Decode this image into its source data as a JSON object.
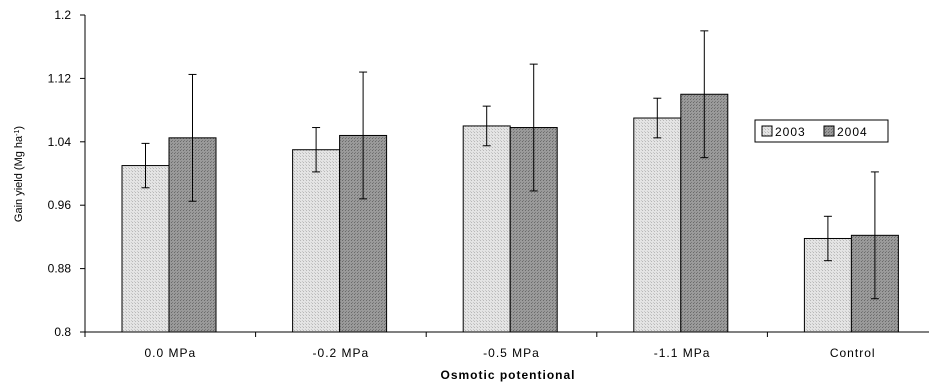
{
  "chart_data": {
    "type": "bar",
    "categories": [
      "0.0 MPa",
      "-0.2 MPa",
      "-0.5 MPa",
      "-1.1 MPa",
      "Control"
    ],
    "series": [
      {
        "name": "2003",
        "color": "#e0e0e0",
        "values": [
          1.01,
          1.03,
          1.06,
          1.07,
          0.918
        ],
        "error": [
          0.028,
          0.028,
          0.025,
          0.025,
          0.028
        ]
      },
      {
        "name": "2004",
        "color": "#8c8c8c",
        "values": [
          1.045,
          1.048,
          1.058,
          1.1,
          0.922
        ],
        "error": [
          0.08,
          0.08,
          0.08,
          0.08,
          0.08
        ]
      }
    ],
    "ylabel": "Gain yield (Mg ha",
    "ylabel_sup": "-1",
    "ylabel_tail": ")",
    "xlabel": "Osmotic potentional",
    "ylim": [
      0.8,
      1.2
    ],
    "yticks": [
      0.8,
      0.88,
      0.96,
      1.04,
      1.12,
      1.2
    ],
    "ytick_labels": [
      "0.8",
      "0.88",
      "0.96",
      "1.04",
      "1.12",
      "1.2"
    ],
    "grid": false,
    "legend_position": "right"
  }
}
